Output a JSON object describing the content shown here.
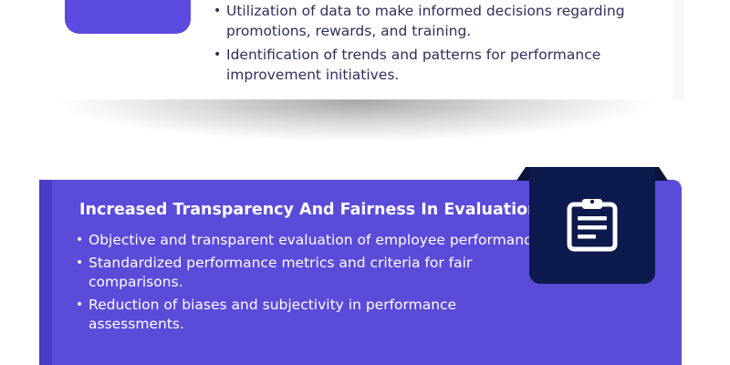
{
  "top_section": {
    "bullets": [
      "Utilization of data to make informed decisions regarding promotions, rewards, and training.",
      "Identification of trends and patterns for performance improvement initiatives."
    ]
  },
  "feature_card": {
    "title": "Increased Transparency And Fairness In Evaluations",
    "icon": "clipboard-icon",
    "bullets": [
      "Objective and transparent evaluation of employee performance.",
      "Standardized performance metrics and criteria for fair comparisons.",
      "Reduction of biases and subjectivity in performance assessments."
    ]
  },
  "colors": {
    "card_purple": "#5a4bd9",
    "accent_purple": "#4a3cc6",
    "badge_purple": "#5b4be0",
    "tab_navy": "#0d1a4d",
    "text_dark": "#2e2e5a"
  }
}
